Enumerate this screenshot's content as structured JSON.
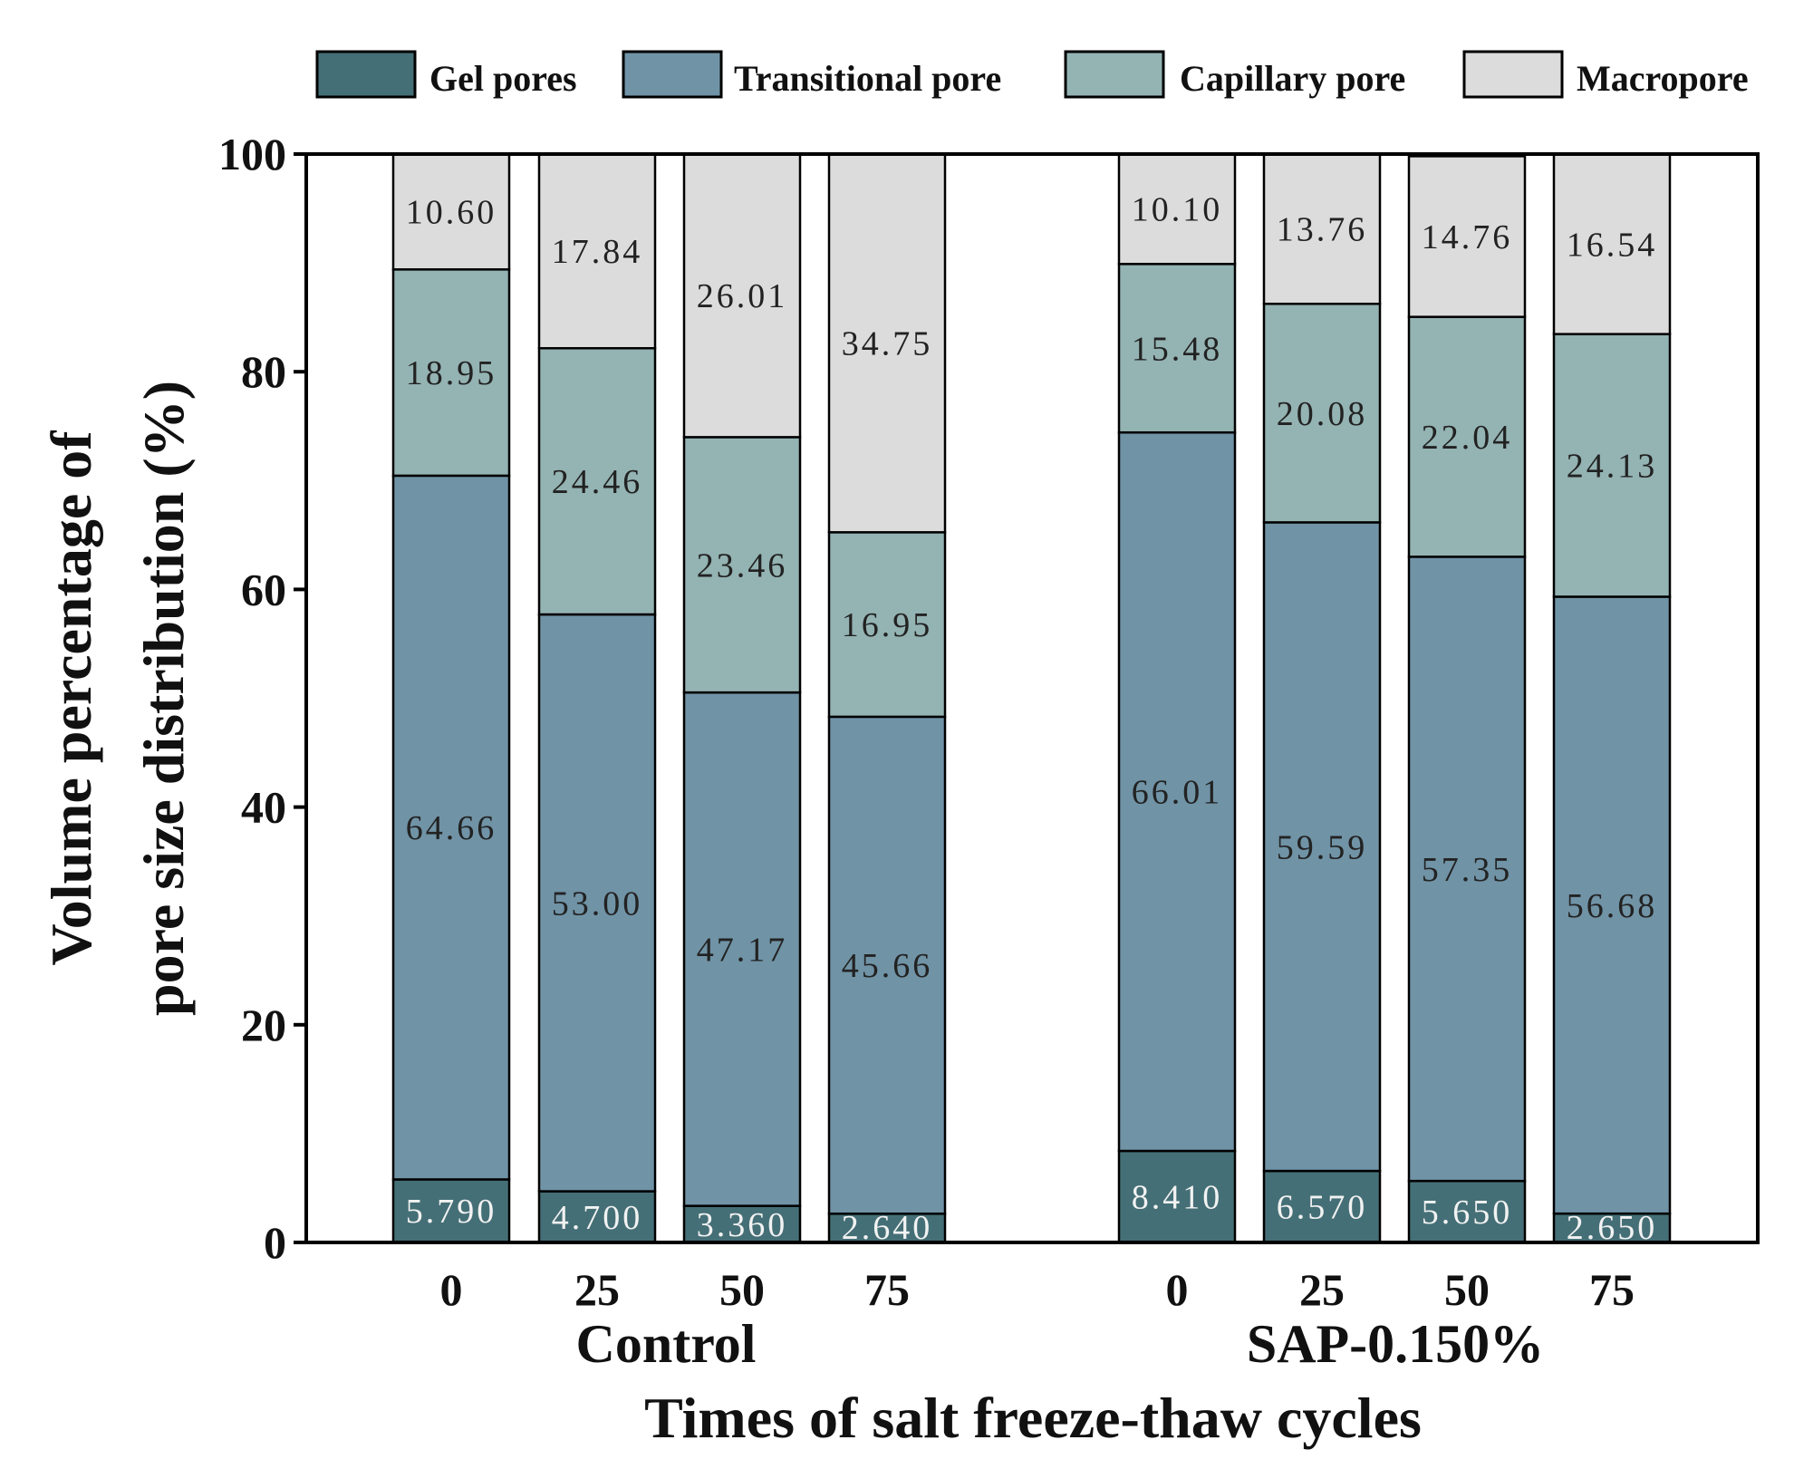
{
  "chart_data": {
    "type": "bar",
    "stacked": true,
    "title": "",
    "ylabel_lines": [
      "Volume percentage of",
      "pore size distribution (%)"
    ],
    "xlabel": "Times of salt freeze-thaw cycles",
    "ylim": [
      0,
      100
    ],
    "yticks": [
      "0",
      "20",
      "40",
      "60",
      "80",
      "100"
    ],
    "groups": [
      {
        "name": "Control",
        "categories": [
          "0",
          "25",
          "50",
          "75"
        ]
      },
      {
        "name": "SAP-0.150%",
        "categories": [
          "0",
          "25",
          "50",
          "75"
        ]
      }
    ],
    "series": [
      {
        "name": "Gel pores",
        "color": "#456f76",
        "values": [
          5.79,
          4.7,
          3.36,
          2.64,
          8.41,
          6.57,
          5.65,
          2.65
        ],
        "labels": [
          "5.790",
          "4.700",
          "3.360",
          "2.640",
          "8.410",
          "6.570",
          "5.650",
          "2.650"
        ]
      },
      {
        "name": "Transitional pore",
        "color": "#7093a6",
        "values": [
          64.66,
          53.0,
          47.17,
          45.66,
          66.01,
          59.59,
          57.35,
          56.68
        ],
        "labels": [
          "64.66",
          "53.00",
          "47.17",
          "45.66",
          "66.01",
          "59.59",
          "57.35",
          "56.68"
        ]
      },
      {
        "name": "Capillary pore",
        "color": "#94b3b3",
        "values": [
          18.95,
          24.46,
          23.46,
          16.95,
          15.48,
          20.08,
          22.04,
          24.13
        ],
        "labels": [
          "18.95",
          "24.46",
          "23.46",
          "16.95",
          "15.48",
          "20.08",
          "22.04",
          "24.13"
        ]
      },
      {
        "name": "Macropore",
        "color": "#dcdcdc",
        "values": [
          10.6,
          17.84,
          26.01,
          34.75,
          10.1,
          13.76,
          14.76,
          16.54
        ],
        "labels": [
          "10.60",
          "17.84",
          "26.01",
          "34.75",
          "10.10",
          "13.76",
          "14.76",
          "16.54"
        ]
      }
    ],
    "legend_position": "top"
  }
}
